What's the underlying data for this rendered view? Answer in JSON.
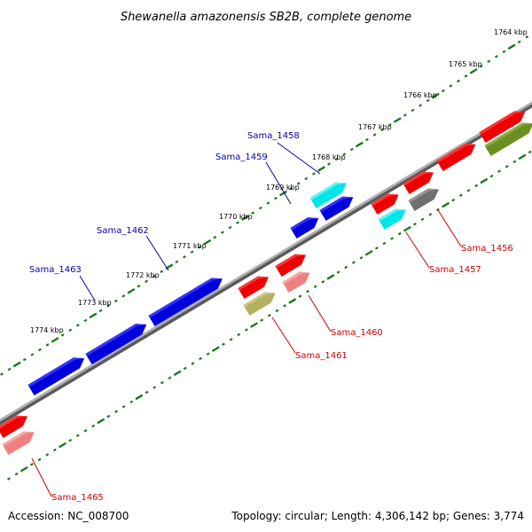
{
  "title": "Shewanella amazonensis SB2B, complete genome",
  "accession": "Accession: NC_008700",
  "summary": "Topology: circular; Length: 4,306,142 bp; Genes: 3,774",
  "scale_ticks": [
    "1764 kbp",
    "1765 kbp",
    "1766 kbp",
    "1767 kbp",
    "1768 kbp",
    "1769 kbp",
    "1770 kbp",
    "1771 kbp",
    "1772 kbp",
    "1773 kbp",
    "1774 kbp"
  ],
  "colors": {
    "forward_cds": "#0000dd",
    "reverse_cds": "#ee0000",
    "tick": "#1a7a1a",
    "backbone": "#8c8c8c",
    "forward_label": "#0000aa",
    "reverse_label": "#cc0000"
  },
  "gene_labels": {
    "forward": [
      "Sama_1458",
      "Sama_1459",
      "Sama_1462",
      "Sama_1463"
    ],
    "reverse": [
      "Sama_1456",
      "Sama_1457",
      "Sama_1460",
      "Sama_1461",
      "Sama_1465"
    ]
  }
}
